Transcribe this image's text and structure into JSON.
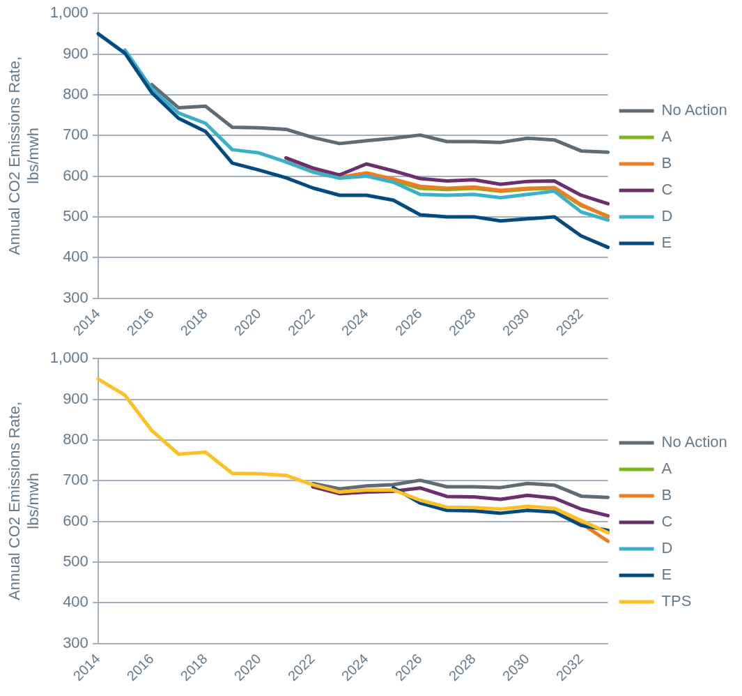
{
  "chart_data": [
    {
      "type": "line",
      "ylabel": "Annual CO2 Emissions Rate, lbs/mwh",
      "categories": [
        "2014",
        null,
        "2016",
        null,
        "2018",
        null,
        "2020",
        null,
        "2022",
        null,
        "2024",
        null,
        "2026",
        null,
        "2028",
        null,
        "2030",
        null,
        "2032",
        null
      ],
      "ylim": [
        300,
        1000
      ],
      "yticks": [
        300,
        400,
        500,
        600,
        700,
        800,
        900,
        {
          "value": 1000,
          "label": "1,000"
        }
      ],
      "grid": "y",
      "legend": "right",
      "marker": "none",
      "line_style": "solid",
      "series": [
        {
          "name": "No Action",
          "color": "#5f6b75",
          "values": [
            null,
            null,
            825,
            768,
            772,
            720,
            719,
            715,
            695,
            680,
            687,
            693,
            701,
            685,
            685,
            683,
            693,
            689,
            662,
            659
          ]
        },
        {
          "name": "A",
          "color": "#7ab51d",
          "values": [
            null,
            null,
            null,
            null,
            null,
            null,
            null,
            null,
            null,
            null,
            605,
            590,
            570,
            567,
            570,
            563,
            568,
            570,
            528,
            502
          ]
        },
        {
          "name": "B",
          "color": "#f07c22",
          "values": [
            null,
            null,
            null,
            null,
            null,
            null,
            null,
            635,
            612,
            597,
            608,
            593,
            575,
            570,
            573,
            565,
            570,
            572,
            530,
            500
          ]
        },
        {
          "name": "C",
          "color": "#6b2f6b",
          "values": [
            null,
            null,
            null,
            null,
            null,
            null,
            null,
            645,
            620,
            603,
            630,
            613,
            594,
            588,
            591,
            580,
            587,
            588,
            553,
            532
          ]
        },
        {
          "name": "D",
          "color": "#3bb0c9",
          "values": [
            null,
            910,
            815,
            755,
            730,
            665,
            657,
            635,
            610,
            595,
            600,
            585,
            555,
            553,
            555,
            547,
            555,
            563,
            512,
            492
          ]
        },
        {
          "name": "E",
          "color": "#024b82",
          "values": [
            950,
            902,
            805,
            742,
            710,
            632,
            615,
            596,
            571,
            553,
            553,
            541,
            505,
            500,
            500,
            490,
            495,
            500,
            453,
            425
          ]
        }
      ]
    },
    {
      "type": "line",
      "ylabel": "Annual CO2 Emissions Rate, lbs/mwh",
      "categories": [
        "2014",
        null,
        "2016",
        null,
        "2018",
        null,
        "2020",
        null,
        "2022",
        null,
        "2024",
        null,
        "2026",
        null,
        "2028",
        null,
        "2030",
        null,
        "2032",
        null
      ],
      "ylim": [
        300,
        1000
      ],
      "yticks": [
        300,
        400,
        500,
        600,
        700,
        800,
        900,
        {
          "value": 1000,
          "label": "1,000"
        }
      ],
      "grid": "y",
      "legend": "right",
      "marker": "none",
      "line_style": "solid",
      "series": [
        {
          "name": "No Action",
          "color": "#5f6b75",
          "values": [
            null,
            null,
            null,
            null,
            null,
            null,
            null,
            null,
            693,
            680,
            687,
            690,
            701,
            685,
            685,
            683,
            693,
            689,
            662,
            659
          ]
        },
        {
          "name": "A",
          "color": "#7ab51d",
          "values": [
            null,
            null,
            null,
            null,
            null,
            null,
            null,
            null,
            null,
            null,
            null,
            null,
            null,
            null,
            null,
            null,
            null,
            null,
            null,
            null
          ]
        },
        {
          "name": "B",
          "color": "#f07c22",
          "values": [
            null,
            null,
            null,
            null,
            null,
            null,
            null,
            null,
            null,
            null,
            null,
            null,
            null,
            null,
            null,
            null,
            null,
            626,
            595,
            551
          ]
        },
        {
          "name": "C",
          "color": "#6b2f6b",
          "values": [
            null,
            null,
            null,
            null,
            null,
            null,
            null,
            null,
            685,
            668,
            672,
            674,
            682,
            661,
            660,
            654,
            664,
            657,
            630,
            614
          ]
        },
        {
          "name": "D",
          "color": "#3bb0c9",
          "values": [
            null,
            null,
            null,
            null,
            null,
            null,
            null,
            null,
            null,
            null,
            null,
            null,
            null,
            null,
            null,
            null,
            null,
            null,
            null,
            null
          ]
        },
        {
          "name": "E",
          "color": "#024b82",
          "values": [
            null,
            null,
            null,
            null,
            null,
            null,
            null,
            null,
            null,
            null,
            null,
            683,
            645,
            627,
            626,
            620,
            627,
            623,
            590,
            578
          ]
        },
        {
          "name": "TPS",
          "color": "#fdbf26",
          "values": [
            950,
            910,
            823,
            765,
            770,
            718,
            717,
            713,
            690,
            672,
            677,
            677,
            652,
            635,
            634,
            630,
            637,
            632,
            602,
            572
          ]
        }
      ]
    }
  ]
}
